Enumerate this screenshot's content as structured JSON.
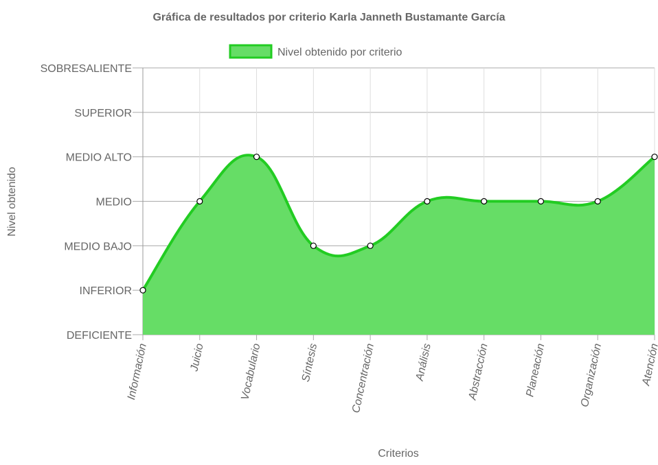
{
  "chart_data": {
    "type": "area",
    "title": "Gráfica de resultados por criterio Karla Janneth Bustamante García",
    "xlabel": "Criterios",
    "ylabel": "Nivel obtenido",
    "categories": [
      "Información",
      "Juicio",
      "Vocabulario",
      "Síntesis",
      "Concentración",
      "Análisis",
      "Abstracción",
      "Planeación",
      "Organización",
      "Atención"
    ],
    "y_categories": [
      "DEFICIENTE",
      "INFERIOR",
      "MEDIO BAJO",
      "MEDIO",
      "MEDIO ALTO",
      "SUPERIOR",
      "SOBRESALIENTE"
    ],
    "ylim": [
      0,
      6
    ],
    "grid": true,
    "legend_position": "top",
    "series": [
      {
        "name": "Nivel obtenido por criterio",
        "values": [
          1,
          3,
          4,
          2,
          2,
          3,
          3,
          3,
          3,
          4
        ],
        "line_color": "#22cc22",
        "fill_color": "#66dd66"
      }
    ]
  }
}
